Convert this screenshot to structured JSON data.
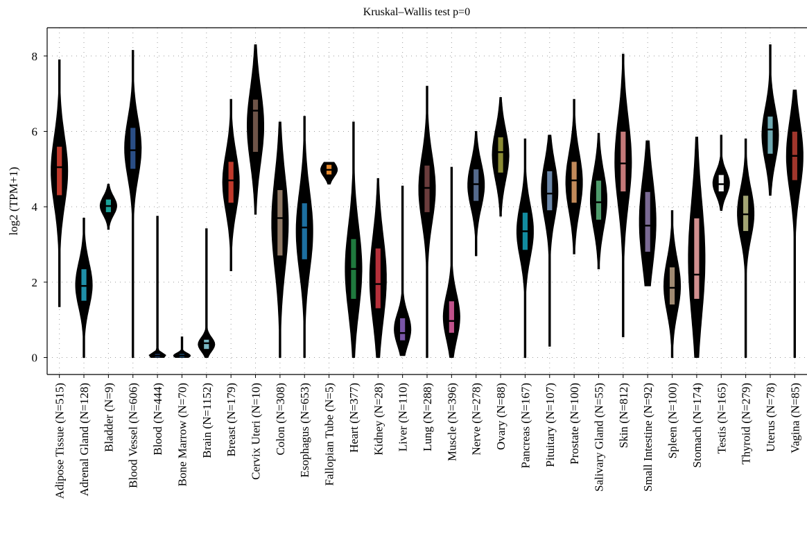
{
  "chart_data": {
    "type": "violin",
    "title": "Kruskal–Wallis test p=0",
    "xlabel": "",
    "ylabel": "log2 (TPM+1)",
    "ylim": [
      -0.45,
      8.75
    ],
    "yticks": [
      0,
      2,
      4,
      6,
      8
    ],
    "grid": true,
    "legend": "none",
    "categories": [
      "Adipose Tissue (N=515)",
      "Adrenal Gland (N=128)",
      "Bladder (N=9)",
      "Blood Vessel (N=606)",
      "Blood (N=444)",
      "Bone Marrow (N=70)",
      "Brain (N=1152)",
      "Breast (N=179)",
      "Cervix Uteri (N=10)",
      "Colon (N=308)",
      "Esophagus (N=653)",
      "Fallopian Tube (N=5)",
      "Heart (N=377)",
      "Kidney (N=28)",
      "Liver (N=110)",
      "Lung (N=288)",
      "Muscle (N=396)",
      "Nerve (N=278)",
      "Ovary (N=88)",
      "Pancreas (N=167)",
      "Pituitary (N=107)",
      "Prostate (N=100)",
      "Salivary Gland (N=55)",
      "Skin (N=812)",
      "Small Intestine (N=92)",
      "Spleen (N=100)",
      "Stomach (N=174)",
      "Testis (N=165)",
      "Thyroid (N=279)",
      "Uterus (N=78)",
      "Vagina (N=85)"
    ],
    "min": [
      1.35,
      0.0,
      3.4,
      0.0,
      0.0,
      0.0,
      0.0,
      2.3,
      3.8,
      0.0,
      0.0,
      4.6,
      0.0,
      0.0,
      0.05,
      0.0,
      0.0,
      2.7,
      3.75,
      0.0,
      0.3,
      2.75,
      2.35,
      0.55,
      1.9,
      0.0,
      0.0,
      3.9,
      0.0,
      4.3,
      0.0
    ],
    "q1": [
      4.3,
      1.5,
      3.85,
      5.0,
      0.0,
      0.0,
      0.22,
      4.1,
      5.45,
      2.7,
      2.6,
      4.85,
      1.55,
      1.3,
      0.45,
      3.85,
      0.65,
      4.15,
      4.9,
      2.85,
      3.9,
      4.1,
      3.65,
      4.4,
      2.8,
      1.4,
      1.55,
      4.4,
      3.35,
      5.4,
      4.7
    ],
    "median": [
      5.05,
      1.9,
      4.02,
      5.5,
      0.05,
      0.05,
      0.38,
      4.7,
      6.55,
      3.7,
      3.45,
      4.98,
      2.35,
      1.95,
      0.65,
      4.5,
      0.97,
      4.6,
      5.45,
      3.35,
      4.35,
      4.7,
      4.12,
      5.15,
      3.5,
      1.85,
      2.2,
      4.6,
      3.8,
      6.05,
      5.35
    ],
    "q3": [
      5.6,
      2.35,
      4.2,
      6.1,
      0.1,
      0.1,
      0.48,
      5.2,
      6.85,
      4.45,
      4.1,
      5.12,
      3.15,
      2.9,
      1.05,
      5.1,
      1.5,
      5.0,
      5.85,
      3.85,
      4.95,
      5.2,
      4.7,
      6.0,
      4.4,
      2.4,
      3.7,
      4.85,
      4.3,
      6.4,
      6.0
    ],
    "max": [
      7.9,
      3.7,
      4.6,
      8.15,
      3.75,
      0.55,
      3.42,
      6.85,
      8.3,
      6.25,
      6.4,
      5.18,
      6.25,
      4.75,
      4.55,
      7.2,
      5.05,
      6.0,
      6.9,
      5.8,
      5.9,
      6.85,
      5.95,
      8.05,
      5.75,
      3.9,
      5.85,
      5.9,
      5.8,
      8.3,
      7.1
    ],
    "colors": [
      "#c0392b",
      "#1f8fa8",
      "#1aa198",
      "#2a4e86",
      "#2a4e86",
      "#1d5d8f",
      "#7ab8c4",
      "#c0392b",
      "#6e5448",
      "#8f7864",
      "#1d6fa0",
      "#e8892b",
      "#1f7a3e",
      "#b5303a",
      "#7a56a8",
      "#6b3d3d",
      "#c0528b",
      "#556a8c",
      "#8a8a33",
      "#128ca0",
      "#6a86a8",
      "#c28a5a",
      "#4e9a6b",
      "#c47a7a",
      "#7a6a94",
      "#a08a72",
      "#d18f8f",
      "#f2f2f2",
      "#a2a474",
      "#6fa9b2",
      "#a0362c"
    ]
  }
}
